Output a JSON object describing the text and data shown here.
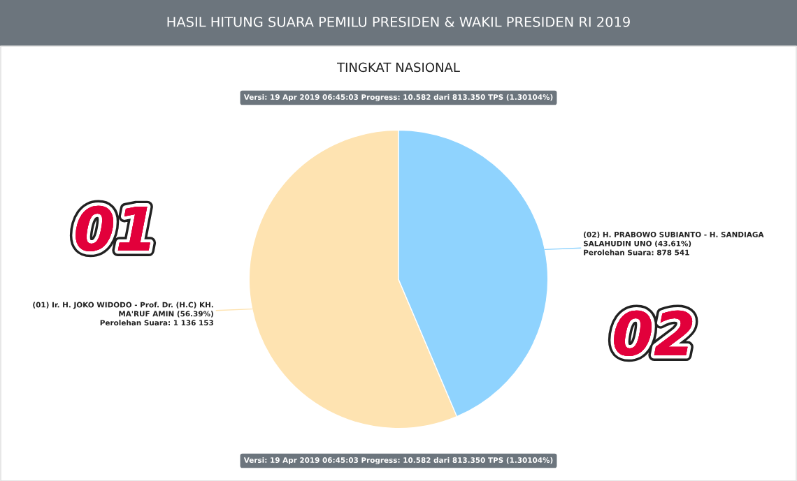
{
  "chart_data": {
    "type": "pie",
    "title": "HASIL HITUNG SUARA PEMILU PRESIDEN & WAKIL PRESIDEN RI 2019",
    "subtitle": "TINGKAT NASIONAL",
    "categories": [
      "(01) Ir. H. JOKO WIDODO - Prof. Dr. (H.C) KH.\nMA'RUF AMIN (56.39%)",
      "(02) H. PRABOWO SUBIANTO - H. SANDIAGA\nSALAHUDIN UNO (43.61%)"
    ],
    "values": [
      1136153,
      878541
    ],
    "value_labels": [
      "Perolehan Suara: 1 136 153",
      "Perolehan Suara: 878 541"
    ],
    "colors": [
      "#fee3b1",
      "#8fd3fe"
    ],
    "legend": false,
    "annotations": [
      "Versi: 19 Apr 2019 06:45:03 Progress: 10.582 dari 813.350 TPS (1.30104%)",
      "Versi: 19 Apr 2019 06:45:03 Progress: 10.582 dari 813.350 TPS (1.30104%)",
      "01",
      "02"
    ]
  }
}
